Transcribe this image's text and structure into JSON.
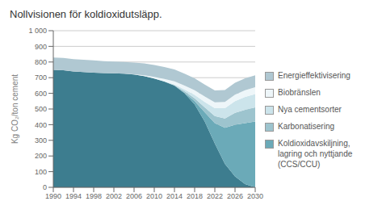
{
  "chart_data": {
    "type": "area",
    "title": "Nollvisionen för koldioxidutsläpp.",
    "ylabel": "Kg CO₂/ton cement",
    "x": [
      1990,
      1992,
      1994,
      1996,
      1998,
      2000,
      2002,
      2004,
      2006,
      2008,
      2010,
      2012,
      2014,
      2016,
      2018,
      2020,
      2022,
      2024,
      2026,
      2028,
      2030
    ],
    "xlim": [
      1990,
      2030
    ],
    "xticks": [
      1990,
      1994,
      1998,
      2002,
      2006,
      2010,
      2014,
      2018,
      2022,
      2026,
      2030
    ],
    "ylim": [
      0,
      1000
    ],
    "yticks": [
      0,
      100,
      200,
      300,
      400,
      500,
      600,
      700,
      800,
      900,
      {
        "value": 1000,
        "label": "1 000"
      }
    ],
    "stacked": true,
    "grid": true,
    "legend": "right",
    "series": [
      {
        "color": "#3d7d8f",
        "values": [
          750,
          748,
          740,
          736,
          732,
          730,
          728,
          725,
          720,
          710,
          695,
          675,
          650,
          600,
          530,
          420,
          280,
          150,
          70,
          20,
          0
        ]
      },
      {
        "name": "Koldioxidavskiljning,\nlagring och nyttjande\n(CCS/CCU)",
        "color": "#6baab8",
        "values": [
          0,
          0,
          0,
          0,
          0,
          0,
          0,
          0,
          0,
          0,
          0,
          0,
          0,
          5,
          20,
          60,
          130,
          230,
          330,
          390,
          420
        ]
      },
      {
        "name": "Karbonatisering",
        "color": "#9dc4ce",
        "values": [
          0,
          0,
          0,
          0,
          0,
          0,
          0,
          0,
          0,
          0,
          0,
          0,
          2,
          8,
          18,
          30,
          45,
          60,
          75,
          85,
          90
        ]
      },
      {
        "name": "Nya cementsorter",
        "color": "#cce4eb",
        "values": [
          0,
          0,
          0,
          0,
          0,
          0,
          0,
          0,
          0,
          0,
          0,
          2,
          5,
          12,
          22,
          35,
          50,
          65,
          75,
          82,
          85
        ]
      },
      {
        "name": "Biobränslen",
        "color": "#eef6f9",
        "values": [
          0,
          0,
          0,
          0,
          0,
          0,
          0,
          0,
          2,
          5,
          10,
          15,
          20,
          25,
          30,
          35,
          38,
          40,
          42,
          43,
          44
        ]
      },
      {
        "name": "Energieffektivisering",
        "color": "#b0c8d2",
        "values": [
          78,
          78,
          78,
          78,
          78,
          76,
          75,
          75,
          75,
          76,
          76,
          76,
          76,
          76,
          76,
          76,
          76,
          76,
          76,
          76,
          76
        ]
      }
    ]
  }
}
